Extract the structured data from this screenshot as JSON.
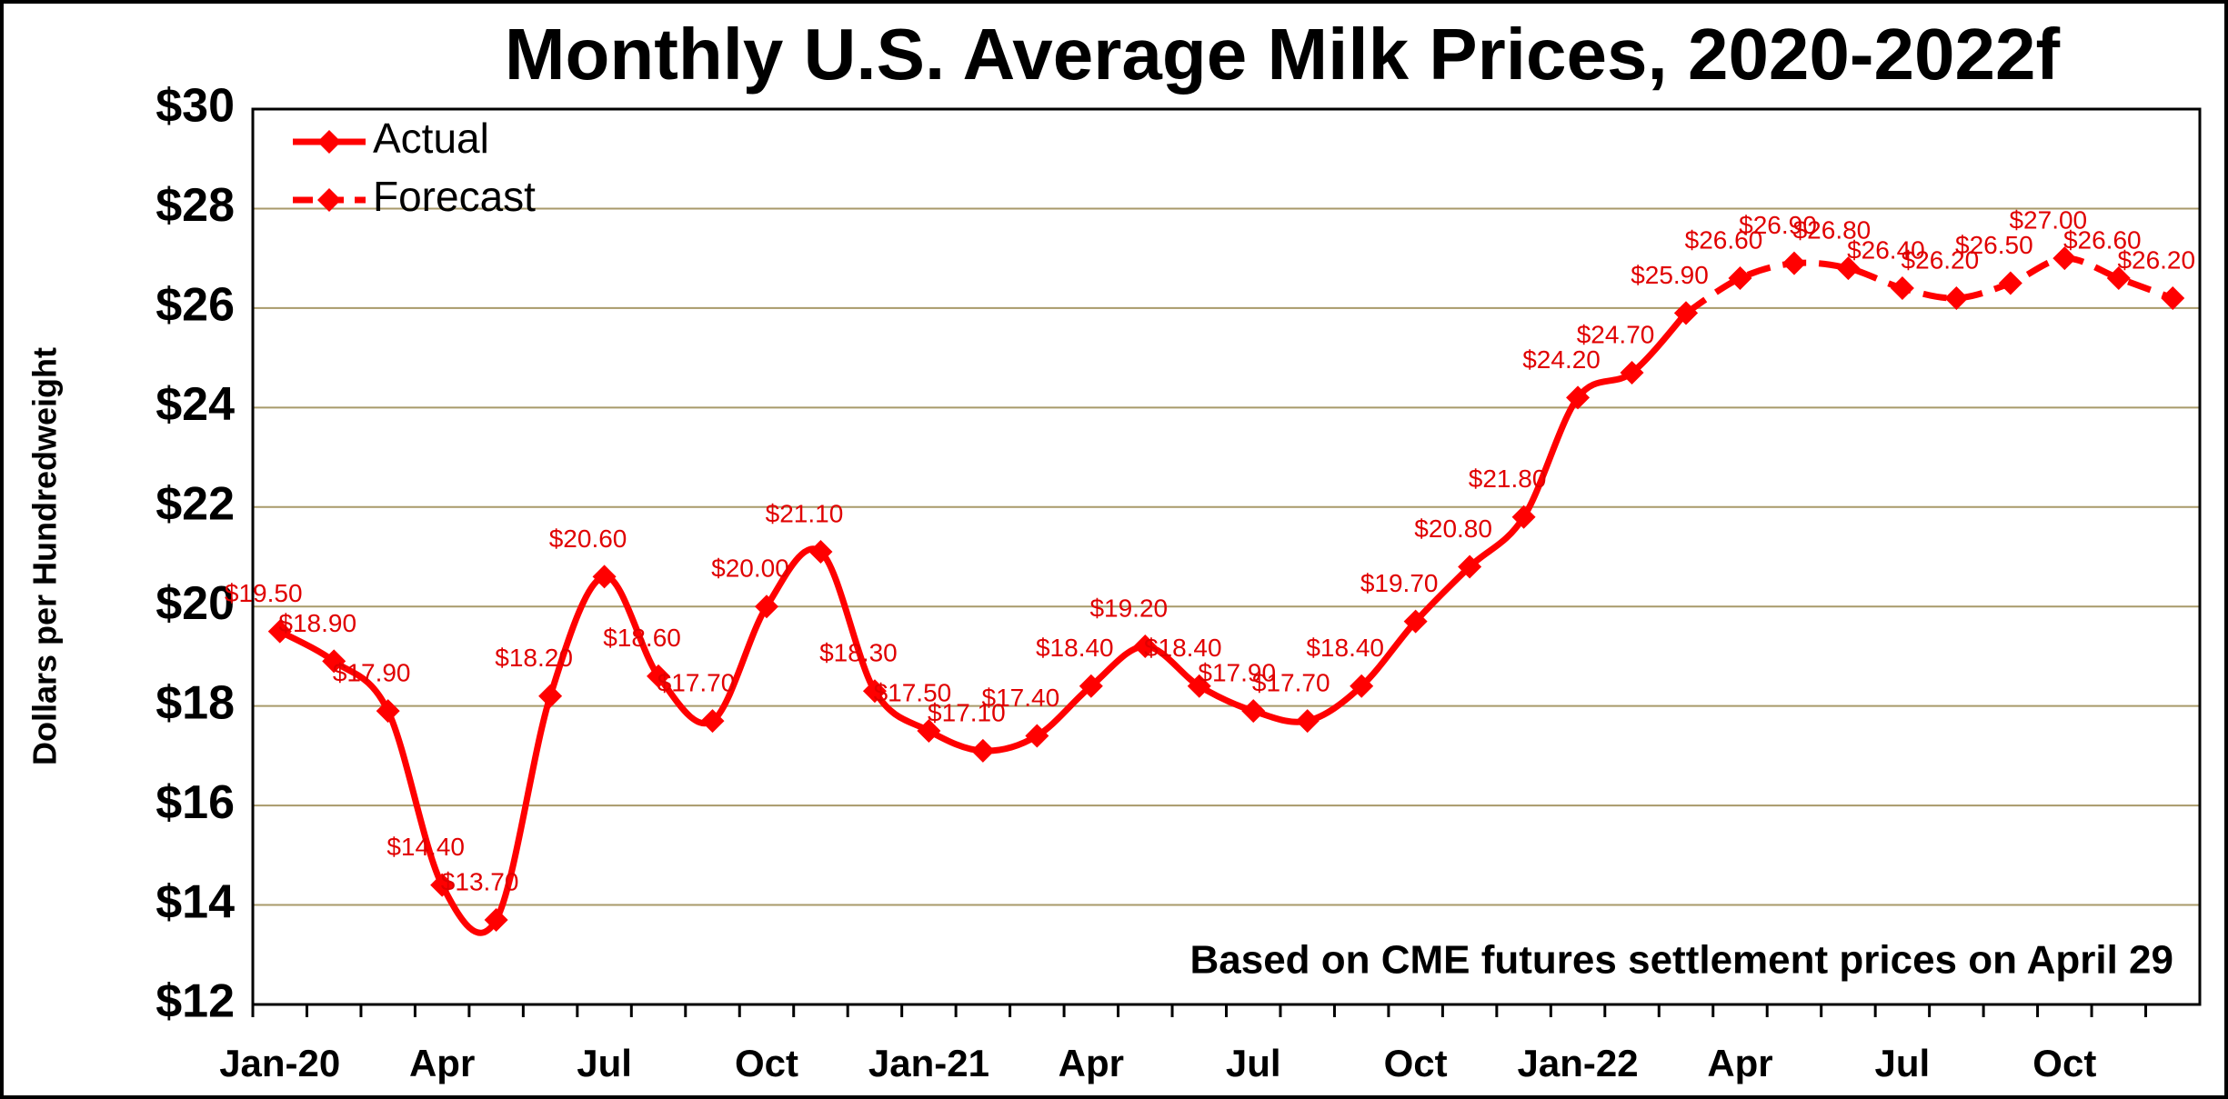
{
  "chart_data": {
    "type": "line",
    "title": "Monthly U.S. Average Milk Prices, 2020-2022f",
    "y_label": "Dollars per Hundredweight",
    "annotation": "Based on CME futures settlement prices on April 29",
    "categories": [
      "Jan-20",
      null,
      null,
      "Apr",
      null,
      null,
      "Jul",
      null,
      null,
      "Oct",
      null,
      null,
      "Jan-21",
      null,
      null,
      "Apr",
      null,
      null,
      "Jul",
      null,
      null,
      "Oct",
      null,
      null,
      "Jan-22",
      null,
      null,
      "Apr",
      null,
      null,
      "Jul",
      null,
      null,
      "Oct",
      null,
      null
    ],
    "series": [
      {
        "name": "Actual",
        "color": "#ff0000",
        "dashed": false,
        "values": [
          19.5,
          18.9,
          17.9,
          14.4,
          13.7,
          18.2,
          20.6,
          18.6,
          17.7,
          20.0,
          21.1,
          18.3,
          17.5,
          17.1,
          17.4,
          18.4,
          19.2,
          18.4,
          17.9,
          17.7,
          18.4,
          19.7,
          20.8,
          21.8,
          24.2,
          24.7,
          25.9,
          null,
          null,
          null,
          null,
          null,
          null,
          null,
          null,
          null
        ],
        "value_labels": [
          "$19.50",
          "$18.90",
          "$17.90",
          "$14.40",
          "$13.70",
          "$18.20",
          "$20.60",
          "$18.60",
          "$17.70",
          "$20.00",
          "$21.10",
          "$18.30",
          "$17.50",
          "$17.10",
          "$17.40",
          "$18.40",
          "$19.20",
          "$18.40",
          "$17.90",
          "$17.70",
          "$18.40",
          "$19.70",
          "$20.80",
          "$21.80",
          "$24.20",
          "$24.70",
          "$25.90",
          null,
          null,
          null,
          null,
          null,
          null,
          null,
          null,
          null
        ]
      },
      {
        "name": "Forecast",
        "color": "#ff0000",
        "dashed": true,
        "values": [
          null,
          null,
          null,
          null,
          null,
          null,
          null,
          null,
          null,
          null,
          null,
          null,
          null,
          null,
          null,
          null,
          null,
          null,
          null,
          null,
          null,
          null,
          null,
          null,
          null,
          null,
          25.9,
          26.6,
          26.9,
          26.8,
          26.4,
          26.2,
          26.5,
          27.0,
          26.6,
          26.2
        ],
        "value_labels": [
          null,
          null,
          null,
          null,
          null,
          null,
          null,
          null,
          null,
          null,
          null,
          null,
          null,
          null,
          null,
          null,
          null,
          null,
          null,
          null,
          null,
          null,
          null,
          null,
          null,
          null,
          null,
          "$26.60",
          "$26.90",
          "$26.80",
          "$26.40",
          "$26.20",
          "$26.50",
          "$27.00",
          "$26.60",
          "$26.20"
        ]
      }
    ],
    "ylim": [
      12,
      30
    ],
    "yticks": [
      {
        "value": 12,
        "label": "$12"
      },
      {
        "value": 14,
        "label": "$14"
      },
      {
        "value": 16,
        "label": "$16"
      },
      {
        "value": 18,
        "label": "$18"
      },
      {
        "value": 20,
        "label": "$20"
      },
      {
        "value": 22,
        "label": "$22"
      },
      {
        "value": 24,
        "label": "$24"
      },
      {
        "value": 26,
        "label": "$26"
      },
      {
        "value": 28,
        "label": "$28"
      },
      {
        "value": 30,
        "label": "$30"
      }
    ],
    "grid": true,
    "legend": "upper left"
  }
}
